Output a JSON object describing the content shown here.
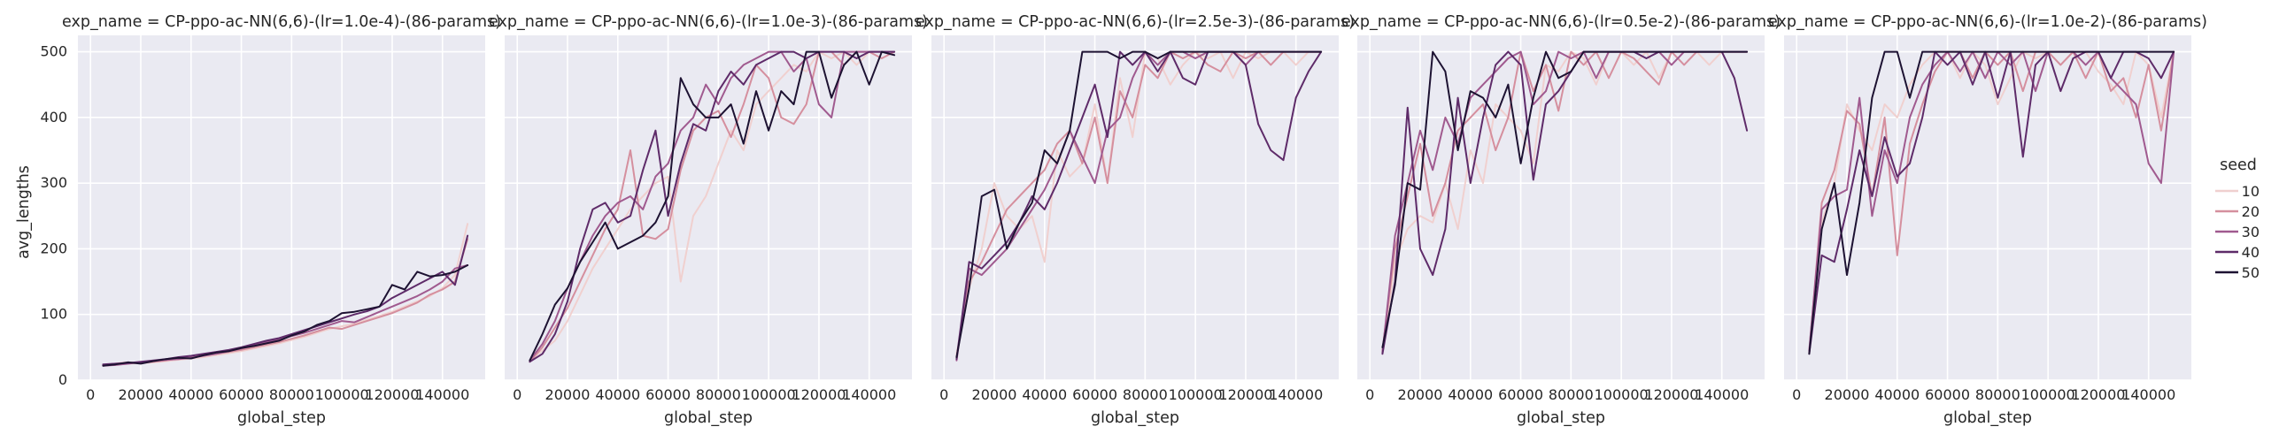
{
  "chart_data": {
    "type": "line",
    "ylabel": "avg_lengths",
    "xlabel": "global_step",
    "xlim": [
      -5000,
      157000
    ],
    "ylim": [
      0,
      525
    ],
    "xticks": [
      0,
      20000,
      40000,
      60000,
      80000,
      100000,
      120000,
      140000
    ],
    "yticks": [
      0,
      100,
      200,
      300,
      400,
      500
    ],
    "grid": true,
    "legend": {
      "title": "seed",
      "placement": "right",
      "entries": [
        {
          "label": "10",
          "color": "#f0d0cf"
        },
        {
          "label": "20",
          "color": "#d58f9e"
        },
        {
          "label": "30",
          "color": "#a05a8f"
        },
        {
          "label": "40",
          "color": "#5e2b69"
        },
        {
          "label": "50",
          "color": "#1d1232"
        }
      ]
    },
    "x": [
      5000,
      10000,
      15000,
      20000,
      25000,
      30000,
      35000,
      40000,
      45000,
      50000,
      55000,
      60000,
      65000,
      70000,
      75000,
      80000,
      85000,
      90000,
      95000,
      100000,
      105000,
      110000,
      115000,
      120000,
      125000,
      130000,
      135000,
      140000,
      145000,
      150000
    ],
    "panels": [
      {
        "title": "exp_name = CP-ppo-ac-NN(6,6)-(lr=1.0e-4)-(86-params)",
        "series": [
          {
            "name": "10",
            "values": [
              22,
              24,
              25,
              26,
              27,
              29,
              31,
              33,
              35,
              38,
              41,
              44,
              48,
              52,
              56,
              61,
              66,
              72,
              78,
              82,
              86,
              92,
              98,
              104,
              112,
              120,
              128,
              140,
              160,
              238
            ]
          },
          {
            "name": "20",
            "values": [
              23,
              25,
              27,
              26,
              28,
              30,
              33,
              35,
              38,
              40,
              43,
              46,
              50,
              54,
              58,
              63,
              68,
              74,
              80,
              78,
              84,
              90,
              96,
              102,
              110,
              118,
              130,
              138,
              150,
              215
            ]
          },
          {
            "name": "30",
            "values": [
              22,
              23,
              25,
              27,
              29,
              31,
              32,
              34,
              37,
              40,
              44,
              48,
              53,
              58,
              62,
              67,
              72,
              78,
              84,
              90,
              88,
              96,
              104,
              112,
              120,
              128,
              138,
              150,
              170,
              175
            ]
          },
          {
            "name": "40",
            "values": [
              24,
              25,
              26,
              28,
              30,
              32,
              35,
              37,
              40,
              43,
              46,
              50,
              55,
              60,
              64,
              70,
              76,
              82,
              88,
              94,
              100,
              105,
              112,
              125,
              135,
              145,
              155,
              165,
              145,
              220
            ]
          },
          {
            "name": "50",
            "values": [
              22,
              24,
              27,
              25,
              29,
              32,
              34,
              33,
              38,
              42,
              44,
              49,
              52,
              56,
              60,
              68,
              74,
              84,
              90,
              102,
              104,
              108,
              112,
              145,
              138,
              165,
              158,
              160,
              165,
              175
            ]
          }
        ]
      },
      {
        "title": "exp_name = CP-ppo-ac-NN(6,6)-(lr=1.0e-3)-(86-params)",
        "series": [
          {
            "name": "10",
            "values": [
              30,
              45,
              60,
              90,
              130,
              170,
              200,
              230,
              260,
              280,
              300,
              310,
              150,
              250,
              280,
              330,
              380,
              350,
              420,
              440,
              460,
              480,
              470,
              500,
              490,
              500,
              480,
              500,
              500,
              500
            ]
          },
          {
            "name": "20",
            "values": [
              28,
              50,
              80,
              110,
              150,
              190,
              230,
              260,
              350,
              220,
              215,
              230,
              320,
              380,
              400,
              410,
              370,
              420,
              480,
              460,
              400,
              390,
              420,
              500,
              500,
              480,
              500,
              500,
              490,
              500
            ]
          },
          {
            "name": "30",
            "values": [
              30,
              55,
              90,
              140,
              180,
              220,
              250,
              270,
              280,
              260,
              310,
              330,
              380,
              400,
              450,
              420,
              460,
              480,
              490,
              500,
              500,
              470,
              490,
              420,
              400,
              500,
              500,
              500,
              500,
              500
            ]
          },
          {
            "name": "40",
            "values": [
              28,
              40,
              70,
              120,
              200,
              260,
              270,
              240,
              250,
              320,
              380,
              250,
              330,
              390,
              380,
              440,
              470,
              450,
              480,
              490,
              500,
              500,
              490,
              500,
              500,
              500,
              490,
              500,
              500,
              500
            ]
          },
          {
            "name": "50",
            "values": [
              30,
              70,
              115,
              140,
              180,
              210,
              240,
              200,
              210,
              220,
              240,
              280,
              460,
              420,
              400,
              400,
              420,
              360,
              440,
              380,
              440,
              420,
              500,
              500,
              430,
              480,
              500,
              450,
              500,
              495
            ]
          }
        ]
      },
      {
        "title": "exp_name = CP-ppo-ac-NN(6,6)-(lr=2.5e-3)-(86-params)",
        "series": [
          {
            "name": "10",
            "values": [
              40,
              140,
              200,
              300,
              250,
              230,
              250,
              180,
              350,
              310,
              330,
              420,
              300,
              460,
              370,
              500,
              490,
              450,
              480,
              500,
              490,
              500,
              460,
              500,
              490,
              500,
              500,
              480,
              500,
              500
            ]
          },
          {
            "name": "20",
            "values": [
              35,
              150,
              180,
              220,
              260,
              280,
              300,
              320,
              360,
              380,
              330,
              400,
              300,
              440,
              400,
              480,
              460,
              500,
              490,
              500,
              480,
              470,
              500,
              490,
              500,
              480,
              500,
              500,
              500,
              500
            ]
          },
          {
            "name": "30",
            "values": [
              30,
              170,
              160,
              180,
              200,
              230,
              260,
              290,
              330,
              380,
              340,
              300,
              380,
              400,
              460,
              500,
              480,
              500,
              500,
              490,
              500,
              500,
              500,
              480,
              500,
              500,
              500,
              500,
              500,
              500
            ]
          },
          {
            "name": "40",
            "values": [
              32,
              180,
              170,
              190,
              210,
              240,
              280,
              260,
              300,
              350,
              400,
              450,
              370,
              500,
              480,
              500,
              470,
              500,
              460,
              450,
              500,
              500,
              500,
              480,
              390,
              350,
              335,
              430,
              470,
              500
            ]
          },
          {
            "name": "50",
            "values": [
              35,
              140,
              280,
              290,
              200,
              240,
              270,
              350,
              330,
              380,
              500,
              500,
              500,
              490,
              500,
              500,
              490,
              500,
              500,
              500,
              500,
              500,
              500,
              500,
              500,
              500,
              500,
              500,
              500,
              500
            ]
          }
        ]
      },
      {
        "title": "exp_name = CP-ppo-ac-NN(6,6)-(lr=0.5e-2)-(86-params)",
        "series": [
          {
            "name": "10",
            "values": [
              40,
              180,
              230,
              250,
              240,
              300,
              230,
              350,
              300,
              420,
              400,
              380,
              330,
              480,
              470,
              500,
              490,
              450,
              500,
              500,
              480,
              500,
              460,
              500,
              500,
              500,
              480,
              500,
              500,
              500
            ]
          },
          {
            "name": "20",
            "values": [
              45,
              200,
              280,
              360,
              250,
              300,
              380,
              400,
              420,
              350,
              400,
              500,
              440,
              480,
              410,
              500,
              480,
              500,
              460,
              500,
              490,
              470,
              450,
              500,
              480,
              500,
              500,
              500,
              500,
              500
            ]
          },
          {
            "name": "30",
            "values": [
              42,
              220,
              300,
              380,
              320,
              400,
              360,
              430,
              450,
              470,
              490,
              500,
              420,
              440,
              500,
              490,
              500,
              460,
              500,
              500,
              500,
              500,
              500,
              480,
              500,
              500,
              500,
              500,
              500,
              500
            ]
          },
          {
            "name": "40",
            "values": [
              40,
              150,
              415,
              200,
              160,
              230,
              430,
              300,
              400,
              480,
              500,
              480,
              305,
              420,
              440,
              470,
              500,
              500,
              500,
              500,
              500,
              490,
              500,
              500,
              500,
              500,
              500,
              500,
              460,
              380
            ]
          },
          {
            "name": "50",
            "values": [
              50,
              145,
              300,
              290,
              500,
              470,
              350,
              440,
              430,
              400,
              450,
              330,
              430,
              500,
              460,
              470,
              500,
              500,
              500,
              500,
              500,
              500,
              500,
              500,
              500,
              500,
              500,
              500,
              500,
              500
            ]
          }
        ]
      },
      {
        "title": "exp_name = CP-ppo-ac-NN(6,6)-(lr=1.0e-2)-(86-params)",
        "series": [
          {
            "name": "10",
            "values": [
              40,
              240,
              300,
              420,
              380,
              350,
              420,
              400,
              450,
              480,
              500,
              500,
              460,
              500,
              480,
              420,
              460,
              500,
              490,
              500,
              480,
              500,
              500,
              470,
              450,
              420,
              500,
              480,
              400,
              500
            ]
          },
          {
            "name": "20",
            "values": [
              42,
              270,
              320,
              410,
              390,
              280,
              400,
              190,
              360,
              420,
              470,
              500,
              500,
              460,
              500,
              480,
              500,
              440,
              500,
              500,
              480,
              500,
              460,
              500,
              440,
              460,
              400,
              480,
              380,
              500
            ]
          },
          {
            "name": "30",
            "values": [
              45,
              260,
              280,
              290,
              430,
              250,
              350,
              300,
              400,
              450,
              480,
              500,
              470,
              500,
              460,
              500,
              480,
              500,
              440,
              500,
              500,
              500,
              480,
              500,
              460,
              440,
              420,
              330,
              300,
              500
            ]
          },
          {
            "name": "40",
            "values": [
              40,
              190,
              180,
              260,
              350,
              280,
              370,
              310,
              330,
              400,
              500,
              480,
              500,
              450,
              500,
              430,
              500,
              340,
              480,
              500,
              440,
              490,
              500,
              500,
              460,
              500,
              500,
              490,
              460,
              500
            ]
          },
          {
            "name": "50",
            "values": [
              40,
              230,
              300,
              160,
              270,
              430,
              500,
              500,
              430,
              500,
              500,
              500,
              500,
              500,
              500,
              500,
              500,
              500,
              500,
              500,
              500,
              500,
              500,
              500,
              500,
              500,
              500,
              500,
              500,
              500
            ]
          }
        ]
      }
    ]
  }
}
